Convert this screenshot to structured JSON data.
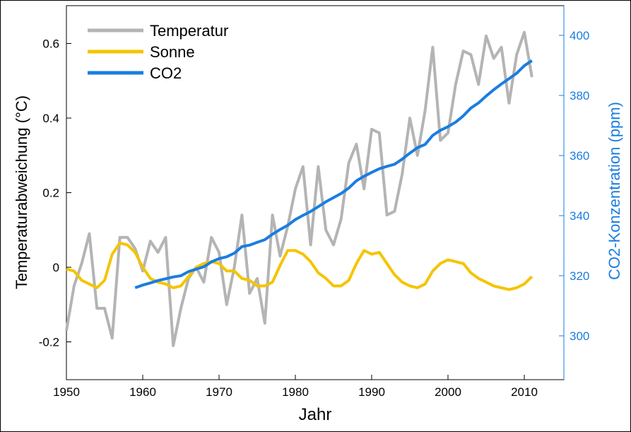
{
  "chart_data": {
    "type": "line",
    "xlabel": "Jahr",
    "ylabel_left": "Temperaturabweichung (°C)",
    "ylabel_right": "CO2-Konzentration (ppm)",
    "xlim": [
      1950,
      2015
    ],
    "ylim_left": [
      -0.3,
      0.7
    ],
    "ylim_right": [
      285,
      409
    ],
    "x_ticks": [
      1950,
      1960,
      1970,
      1980,
      1990,
      2000,
      2010
    ],
    "y_left_ticks": [
      {
        "value": -0.2,
        "label": "-0.2"
      },
      {
        "value": 0,
        "label": "0"
      },
      {
        "value": 0.2,
        "label": "0.2"
      },
      {
        "value": 0.4,
        "label": "0.4"
      },
      {
        "value": 0.6,
        "label": "0.6"
      }
    ],
    "y_right_ticks": [
      {
        "value": 300,
        "label": "300"
      },
      {
        "value": 320,
        "label": "320"
      },
      {
        "value": 340,
        "label": "340"
      },
      {
        "value": 360,
        "label": "360"
      },
      {
        "value": 380,
        "label": "380"
      },
      {
        "value": 400,
        "label": "400"
      }
    ],
    "legend_position": "top-left",
    "colors": {
      "temperature": "#b4b4b4",
      "sun": "#f5c400",
      "co2": "#1a7de0",
      "right_axis": "#1a7de0"
    },
    "series": [
      {
        "name": "Temperatur",
        "key": "temperature",
        "axis": "left",
        "x": [
          1950,
          1951,
          1952,
          1953,
          1954,
          1955,
          1956,
          1957,
          1958,
          1959,
          1960,
          1961,
          1962,
          1963,
          1964,
          1965,
          1966,
          1967,
          1968,
          1969,
          1970,
          1971,
          1972,
          1973,
          1974,
          1975,
          1976,
          1977,
          1978,
          1979,
          1980,
          1981,
          1982,
          1983,
          1984,
          1985,
          1986,
          1987,
          1988,
          1989,
          1990,
          1991,
          1992,
          1993,
          1994,
          1995,
          1996,
          1997,
          1998,
          1999,
          2000,
          2001,
          2002,
          2003,
          2004,
          2005,
          2006,
          2007,
          2008,
          2009,
          2010,
          2011
        ],
        "y": [
          -0.17,
          -0.05,
          0.01,
          0.09,
          -0.11,
          -0.11,
          -0.19,
          0.08,
          0.08,
          0.05,
          -0.01,
          0.07,
          0.04,
          0.08,
          -0.21,
          -0.11,
          -0.03,
          0.0,
          -0.04,
          0.08,
          0.04,
          -0.1,
          0.0,
          0.14,
          -0.07,
          -0.03,
          -0.15,
          0.14,
          0.03,
          0.11,
          0.21,
          0.27,
          0.06,
          0.27,
          0.1,
          0.06,
          0.13,
          0.28,
          0.33,
          0.21,
          0.37,
          0.36,
          0.14,
          0.15,
          0.25,
          0.4,
          0.3,
          0.42,
          0.59,
          0.34,
          0.36,
          0.49,
          0.58,
          0.57,
          0.49,
          0.62,
          0.56,
          0.59,
          0.44,
          0.57,
          0.63,
          0.51
        ]
      },
      {
        "name": "Sonne",
        "key": "sun",
        "axis": "left",
        "x": [
          1950,
          1951,
          1952,
          1953,
          1954,
          1955,
          1956,
          1957,
          1958,
          1959,
          1960,
          1961,
          1962,
          1963,
          1964,
          1965,
          1966,
          1967,
          1968,
          1969,
          1970,
          1971,
          1972,
          1973,
          1974,
          1975,
          1976,
          1977,
          1978,
          1979,
          1980,
          1981,
          1982,
          1983,
          1984,
          1985,
          1986,
          1987,
          1988,
          1989,
          1990,
          1991,
          1992,
          1993,
          1994,
          1995,
          1996,
          1997,
          1998,
          1999,
          2000,
          2001,
          2002,
          2003,
          2004,
          2005,
          2006,
          2007,
          2008,
          2009,
          2010,
          2011
        ],
        "y": [
          -0.005,
          -0.01,
          -0.035,
          -0.045,
          -0.055,
          -0.035,
          0.035,
          0.065,
          0.06,
          0.04,
          0.0,
          -0.03,
          -0.04,
          -0.045,
          -0.055,
          -0.05,
          -0.025,
          0.0,
          0.01,
          0.015,
          0.01,
          -0.01,
          -0.01,
          -0.03,
          -0.035,
          -0.05,
          -0.05,
          -0.04,
          0.005,
          0.045,
          0.045,
          0.035,
          0.015,
          -0.015,
          -0.03,
          -0.05,
          -0.05,
          -0.035,
          0.01,
          0.045,
          0.035,
          0.04,
          0.01,
          -0.02,
          -0.04,
          -0.05,
          -0.055,
          -0.045,
          -0.01,
          0.01,
          0.02,
          0.015,
          0.01,
          -0.015,
          -0.03,
          -0.04,
          -0.05,
          -0.055,
          -0.06,
          -0.055,
          -0.045,
          -0.025
        ]
      },
      {
        "name": "CO2",
        "key": "co2",
        "axis": "right",
        "x": [
          1959,
          1960,
          1961,
          1962,
          1963,
          1964,
          1965,
          1966,
          1967,
          1968,
          1969,
          1970,
          1971,
          1972,
          1973,
          1974,
          1975,
          1976,
          1977,
          1978,
          1979,
          1980,
          1981,
          1982,
          1983,
          1984,
          1985,
          1986,
          1987,
          1988,
          1989,
          1990,
          1991,
          1992,
          1993,
          1994,
          1995,
          1996,
          1997,
          1998,
          1999,
          2000,
          2001,
          2002,
          2003,
          2004,
          2005,
          2006,
          2007,
          2008,
          2009,
          2010,
          2011
        ],
        "y": [
          316.0,
          316.9,
          317.6,
          318.4,
          319.0,
          319.6,
          320.0,
          321.4,
          322.2,
          323.0,
          324.6,
          325.7,
          326.3,
          327.5,
          329.7,
          330.2,
          331.1,
          332.0,
          333.8,
          335.4,
          336.8,
          338.7,
          340.1,
          341.4,
          343.0,
          344.6,
          346.0,
          347.4,
          349.2,
          351.6,
          353.1,
          354.4,
          355.6,
          356.4,
          357.1,
          358.8,
          360.8,
          362.6,
          363.7,
          366.7,
          368.4,
          369.6,
          371.1,
          373.2,
          375.8,
          377.5,
          379.8,
          381.9,
          383.8,
          385.6,
          387.4,
          389.9,
          391.6
        ]
      }
    ]
  }
}
